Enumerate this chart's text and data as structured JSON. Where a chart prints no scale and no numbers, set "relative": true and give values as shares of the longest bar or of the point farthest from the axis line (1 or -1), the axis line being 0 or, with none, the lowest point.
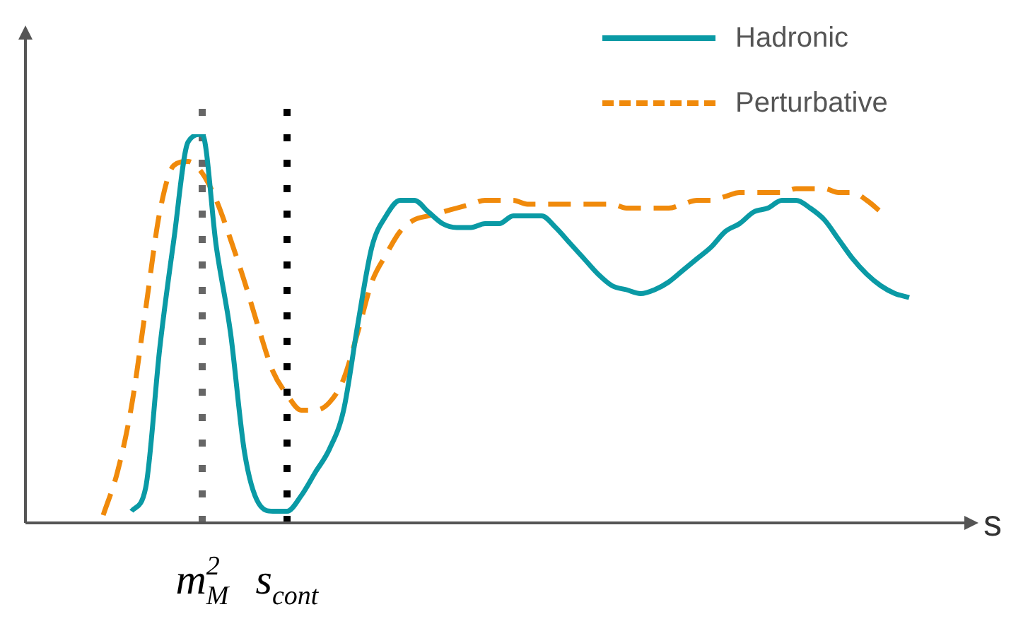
{
  "chart_data": {
    "type": "line",
    "relative": true,
    "xlabel": "s",
    "legend": "top right",
    "grid": false,
    "categories": [
      null,
      null,
      null,
      null,
      null,
      null,
      null,
      "m$^{2}$$_{M}$",
      null,
      null,
      null,
      null,
      null,
      "s$_{cont}$",
      null,
      null,
      null,
      null,
      null,
      null,
      null,
      null,
      null,
      null,
      null,
      null,
      null,
      null,
      null,
      null,
      null,
      null,
      null,
      null,
      null,
      null,
      null,
      null,
      null,
      null,
      null,
      null,
      null,
      null,
      null,
      null,
      null,
      null,
      null,
      null,
      null,
      null,
      null,
      null,
      null,
      null,
      null,
      null
    ],
    "series": [
      {
        "name": "Hadronic",
        "color": "#0a9aa5",
        "line_style": "solid",
        "values": [
          null,
          null,
          0.03,
          0.09,
          0.45,
          0.73,
          0.98,
          1.0,
          0.71,
          0.49,
          0.18,
          0.05,
          0.03,
          0.03,
          0.07,
          0.13,
          0.19,
          0.29,
          0.51,
          0.71,
          0.79,
          0.83,
          0.83,
          0.8,
          0.77,
          0.76,
          0.76,
          0.77,
          0.77,
          0.79,
          0.79,
          0.79,
          0.76,
          0.72,
          0.68,
          0.64,
          0.61,
          0.6,
          0.59,
          0.6,
          0.62,
          0.65,
          0.68,
          0.71,
          0.75,
          0.77,
          0.8,
          0.81,
          0.83,
          0.83,
          0.81,
          0.78,
          0.73,
          0.68,
          0.64,
          0.61,
          0.59,
          0.58
        ]
      },
      {
        "name": "Perturbative",
        "color": "#f08a0b",
        "line_style": "dashed",
        "values": [
          0.02,
          0.13,
          0.3,
          0.55,
          0.8,
          0.92,
          0.93,
          0.9,
          0.83,
          0.73,
          0.62,
          0.5,
          0.39,
          0.33,
          0.29,
          0.29,
          0.31,
          0.37,
          0.49,
          0.62,
          0.69,
          0.75,
          0.78,
          0.79,
          0.8,
          0.81,
          0.82,
          0.83,
          0.83,
          0.83,
          0.82,
          0.82,
          0.82,
          0.82,
          0.82,
          0.82,
          0.82,
          0.81,
          0.81,
          0.81,
          0.81,
          0.82,
          0.83,
          0.83,
          0.84,
          0.85,
          0.85,
          0.85,
          0.85,
          0.86,
          0.86,
          0.86,
          0.85,
          0.85,
          0.83,
          0.8,
          null,
          null
        ]
      }
    ],
    "ref_lines": [
      {
        "axis": "x",
        "value": "m$^{2}$$_{M}$",
        "color": "#666666",
        "line_style": "dotted"
      },
      {
        "axis": "x",
        "value": "s$_{cont}$",
        "color": "#000000",
        "line_style": "dotted"
      }
    ]
  }
}
